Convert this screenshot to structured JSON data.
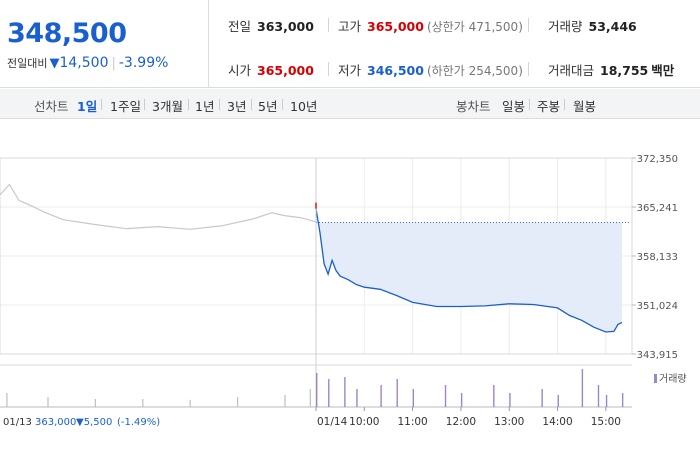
{
  "quote": {
    "price": "348,500",
    "change_label": "전일대비",
    "change_arrow": "▼",
    "change_value": "14,500",
    "change_pct": "-3.99%",
    "stats": {
      "prev_close": {
        "label": "전일",
        "value": "363,000"
      },
      "high": {
        "label": "고가",
        "value": "365,000",
        "sub": "(상한가 471,500)"
      },
      "volume": {
        "label": "거래량",
        "value": "53,446"
      },
      "open": {
        "label": "시가",
        "value": "365,000"
      },
      "low": {
        "label": "저가",
        "value": "346,500",
        "sub": "(하한가 254,500)"
      },
      "turnover": {
        "label": "거래대금",
        "value": "18,755",
        "unit": "백만"
      }
    }
  },
  "toolbar": {
    "line_chart_label": "선차트",
    "line_periods": [
      "1일",
      "1주일",
      "3개월",
      "1년",
      "3년",
      "5년",
      "10년"
    ],
    "active_period": "1일",
    "candle_chart_label": "봉차트",
    "candle_periods": [
      "일봉",
      "주봉",
      "월봉"
    ]
  },
  "colors": {
    "up": "#d60000",
    "down": "#1a5fd0",
    "prev_day_line": "#c8c8c8",
    "fill": "#e3ecf8",
    "volume_bar": "#9b86c8"
  },
  "chart_data": {
    "type": "line",
    "y_ticks": [
      372350,
      365241,
      358133,
      351024,
      343915
    ],
    "y_tick_labels": [
      "372,350",
      "365,241",
      "358,133",
      "351,024",
      "343,915"
    ],
    "ylim": [
      343915,
      372350
    ],
    "prev_close": 363000,
    "x_time_labels": [
      "01/14",
      "10:00",
      "11:00",
      "12:00",
      "13:00",
      "14:00",
      "15:00"
    ],
    "prev_day": {
      "date_label": "01/13",
      "close_label": "363,000",
      "change_label": "▼5,500",
      "pct_label": "(-1.49%)",
      "series": [
        [
          0.0,
          367000
        ],
        [
          0.03,
          368500
        ],
        [
          0.06,
          366200
        ],
        [
          0.1,
          365400
        ],
        [
          0.14,
          364500
        ],
        [
          0.2,
          363400
        ],
        [
          0.3,
          362700
        ],
        [
          0.4,
          362100
        ],
        [
          0.5,
          362400
        ],
        [
          0.6,
          362000
        ],
        [
          0.7,
          362500
        ],
        [
          0.8,
          363500
        ],
        [
          0.86,
          364400
        ],
        [
          0.9,
          364000
        ],
        [
          0.95,
          363700
        ],
        [
          1.0,
          363100
        ]
      ]
    },
    "today": {
      "series": [
        [
          "09:00",
          365000
        ],
        [
          "09:05",
          361500
        ],
        [
          "09:10",
          357000
        ],
        [
          "09:15",
          355500
        ],
        [
          "09:20",
          357500
        ],
        [
          "09:25",
          356000
        ],
        [
          "09:30",
          355200
        ],
        [
          "09:40",
          354700
        ],
        [
          "09:50",
          354000
        ],
        [
          "10:00",
          353600
        ],
        [
          "10:20",
          353300
        ],
        [
          "10:40",
          352400
        ],
        [
          "11:00",
          351400
        ],
        [
          "11:30",
          350800
        ],
        [
          "12:00",
          350800
        ],
        [
          "12:30",
          350900
        ],
        [
          "13:00",
          351200
        ],
        [
          "13:30",
          351100
        ],
        [
          "14:00",
          350600
        ],
        [
          "14:15",
          349500
        ],
        [
          "14:30",
          348800
        ],
        [
          "14:45",
          347800
        ],
        [
          "15:00",
          347100
        ],
        [
          "15:10",
          347200
        ],
        [
          "15:15",
          348200
        ],
        [
          "15:20",
          348500
        ]
      ]
    },
    "volume_legend": "거래량",
    "volume": {
      "prev_day": [
        [
          0.02,
          0.35
        ],
        [
          0.15,
          0.25
        ],
        [
          0.3,
          0.2
        ],
        [
          0.45,
          0.2
        ],
        [
          0.6,
          0.18
        ],
        [
          0.75,
          0.25
        ],
        [
          0.9,
          0.3
        ],
        [
          0.98,
          0.45
        ]
      ],
      "today": [
        [
          "09:00",
          0.85
        ],
        [
          "09:15",
          0.7
        ],
        [
          "09:35",
          0.75
        ],
        [
          "09:50",
          0.45
        ],
        [
          "10:20",
          0.55
        ],
        [
          "10:40",
          0.7
        ],
        [
          "11:00",
          0.45
        ],
        [
          "11:40",
          0.55
        ],
        [
          "12:00",
          0.35
        ],
        [
          "12:40",
          0.55
        ],
        [
          "13:00",
          0.35
        ],
        [
          "13:40",
          0.45
        ],
        [
          "14:00",
          0.3
        ],
        [
          "14:30",
          0.95
        ],
        [
          "14:50",
          0.55
        ],
        [
          "15:00",
          0.3
        ],
        [
          "15:20",
          0.35
        ]
      ]
    }
  }
}
